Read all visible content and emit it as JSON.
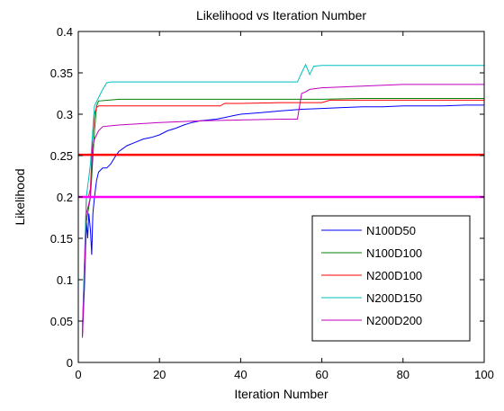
{
  "chart_data": {
    "type": "line",
    "title": "Likelihood vs Iteration Number",
    "xlabel": "Iteration Number",
    "ylabel": "Likelihood",
    "xlim": [
      0,
      100
    ],
    "ylim": [
      0,
      0.4
    ],
    "xticks": [
      0,
      20,
      40,
      60,
      80,
      100
    ],
    "yticks": [
      0,
      0.05,
      0.1,
      0.15,
      0.2,
      0.25,
      0.3,
      0.35,
      0.4
    ],
    "xtick_labels": [
      "0",
      "20",
      "40",
      "60",
      "80",
      "100"
    ],
    "ytick_labels": [
      "0",
      "0.05",
      "0.1",
      "0.15",
      "0.2",
      "0.25",
      "0.3",
      "0.35",
      "0.4"
    ],
    "grid": false,
    "legend_position": "lower-right",
    "series": [
      {
        "name": "N100D50",
        "color": "#0000ff",
        "x": [
          1,
          1.5,
          2,
          2.3,
          2.6,
          3,
          3.3,
          3.6,
          4,
          4.5,
          5,
          6,
          7,
          8,
          9,
          10,
          12,
          14,
          16,
          18,
          20,
          22,
          24,
          26,
          28,
          30,
          32,
          34,
          36,
          38,
          40,
          45,
          50,
          55,
          60,
          65,
          70,
          75,
          80,
          85,
          90,
          95,
          100
        ],
        "y": [
          0.03,
          0.09,
          0.17,
          0.15,
          0.18,
          0.16,
          0.13,
          0.18,
          0.2,
          0.22,
          0.23,
          0.235,
          0.235,
          0.24,
          0.248,
          0.255,
          0.262,
          0.266,
          0.27,
          0.272,
          0.275,
          0.28,
          0.283,
          0.287,
          0.29,
          0.292,
          0.293,
          0.294,
          0.296,
          0.298,
          0.3,
          0.302,
          0.304,
          0.306,
          0.307,
          0.308,
          0.309,
          0.309,
          0.31,
          0.31,
          0.31,
          0.311,
          0.311
        ]
      },
      {
        "name": "N100D100",
        "color": "#008000",
        "x": [
          1,
          2,
          3,
          3.5,
          4,
          4.5,
          5,
          10,
          20,
          30,
          40,
          50,
          60,
          70,
          80,
          90,
          100
        ],
        "y": [
          0.04,
          0.17,
          0.2,
          0.24,
          0.28,
          0.31,
          0.316,
          0.318,
          0.318,
          0.318,
          0.318,
          0.318,
          0.318,
          0.319,
          0.319,
          0.319,
          0.319
        ]
      },
      {
        "name": "N200D100",
        "color": "#ff0000",
        "x": [
          1,
          2,
          2.5,
          3,
          3.5,
          4,
          4.5,
          5,
          10,
          20,
          30,
          35,
          36,
          40,
          50,
          55,
          60,
          62,
          70,
          80,
          90,
          100
        ],
        "y": [
          0.03,
          0.2,
          0.2,
          0.21,
          0.27,
          0.3,
          0.308,
          0.31,
          0.31,
          0.31,
          0.31,
          0.31,
          0.313,
          0.313,
          0.314,
          0.314,
          0.314,
          0.317,
          0.317,
          0.317,
          0.317,
          0.317
        ]
      },
      {
        "name": "N200D150",
        "color": "#00bfbf",
        "x": [
          1,
          2,
          3,
          4,
          5,
          6,
          7,
          8,
          10,
          20,
          30,
          40,
          50,
          54,
          55,
          56,
          57,
          58,
          60,
          70,
          80,
          90,
          100
        ],
        "y": [
          0.04,
          0.2,
          0.24,
          0.31,
          0.32,
          0.33,
          0.338,
          0.339,
          0.339,
          0.339,
          0.339,
          0.339,
          0.339,
          0.339,
          0.35,
          0.36,
          0.348,
          0.358,
          0.359,
          0.359,
          0.359,
          0.359,
          0.359
        ]
      },
      {
        "name": "N200D200",
        "color": "#bf00bf",
        "x": [
          1,
          2,
          2.5,
          3,
          3.5,
          4,
          5,
          6,
          8,
          10,
          20,
          30,
          40,
          50,
          54,
          55,
          56,
          57,
          60,
          70,
          80,
          90,
          100
        ],
        "y": [
          0.03,
          0.18,
          0.19,
          0.2,
          0.26,
          0.27,
          0.28,
          0.285,
          0.286,
          0.287,
          0.29,
          0.292,
          0.293,
          0.294,
          0.294,
          0.325,
          0.327,
          0.33,
          0.332,
          0.334,
          0.336,
          0.336,
          0.336
        ]
      },
      {
        "name": "",
        "color": "#ff0000",
        "x": [
          0,
          100
        ],
        "y": [
          0.251,
          0.251
        ],
        "line_width": 2.5
      },
      {
        "name": "",
        "color": "#ff00ff",
        "x": [
          0,
          100
        ],
        "y": [
          0.2,
          0.2
        ],
        "line_width": 2.5
      }
    ]
  }
}
